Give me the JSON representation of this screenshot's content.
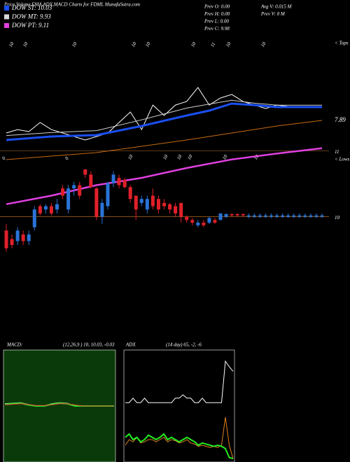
{
  "chart_data": [
    {
      "type": "candlestick",
      "title": "Price,Volume,EMA,ADX,MACD Charts for FDML MunafaSutra.com",
      "legend": [
        {
          "name": "DOW ST: 10.03",
          "color": "#1a4ff0"
        },
        {
          "name": "DOW MT: 9.93",
          "color": "#d8d8d8"
        },
        {
          "name": "DOW PT: 9.11",
          "color": "#e040e0"
        }
      ],
      "info": [
        [
          "Prev O: 0.00",
          "Prev H: 0.00",
          "Prev L: 0.00",
          "Prev C: 9.98"
        ],
        [
          "Avg V: 0.015 M",
          "Prev V: 0 M"
        ]
      ],
      "top_labels": [
        "10",
        "10",
        "10",
        "10",
        "10",
        "10",
        "11",
        "10",
        "10"
      ],
      "mid_labels": [
        "0",
        "0",
        "10",
        "10",
        "10",
        "10",
        "10",
        "10"
      ],
      "tops_label": "< Tops",
      "lows_label": "< Lows",
      "ylim": [
        9.4,
        11.9
      ],
      "yticks": [
        10,
        11
      ],
      "up_color": "#2a73d8",
      "down_color": "#e0202a",
      "candles": {
        "open": [
          9.79,
          9.66,
          9.63,
          9.73,
          9.63,
          9.84,
          10.16,
          10.11,
          10.16,
          10.11,
          10.43,
          10.11,
          10.43,
          10.48,
          10.72,
          10.64,
          10.43,
          10.0,
          10.16,
          10.51,
          10.59,
          10.56,
          10.45,
          10.32,
          10.21,
          10.11,
          10.32,
          10.27,
          10.21,
          10.19,
          10.16,
          10.21,
          10.0,
          9.95,
          9.87,
          9.91,
          9.91,
          9.95,
          9.95,
          10.0,
          10.04,
          10.04,
          10.04,
          10.0,
          10.0,
          10.0,
          10.0,
          10.0,
          10.0,
          10.0,
          10.0,
          10.0,
          10.0,
          10.0,
          10.0,
          10.0,
          10.0
        ],
        "high": [
          9.89,
          9.73,
          9.84,
          9.79,
          9.79,
          10.16,
          10.19,
          10.19,
          10.21,
          10.27,
          10.48,
          10.48,
          10.53,
          10.53,
          10.72,
          10.69,
          10.45,
          10.27,
          10.53,
          10.69,
          10.64,
          10.59,
          10.48,
          10.32,
          10.32,
          10.32,
          10.43,
          10.32,
          10.27,
          10.21,
          10.21,
          10.21,
          10.02,
          9.98,
          9.95,
          9.95,
          10.0,
          9.98,
          10.05,
          10.05,
          10.05,
          10.05,
          10.05,
          10.05,
          10.05,
          10.05,
          10.05,
          10.05,
          10.05,
          10.05,
          10.05,
          10.05,
          10.05,
          10.05,
          10.05,
          10.05,
          10.05
        ],
        "low": [
          9.47,
          9.52,
          9.57,
          9.57,
          9.57,
          9.79,
          10.02,
          10.05,
          10.02,
          10.05,
          10.27,
          10.05,
          10.32,
          10.27,
          10.59,
          10.43,
          9.95,
          9.89,
          10.11,
          10.45,
          10.43,
          10.43,
          10.21,
          9.95,
          10.16,
          10.05,
          10.11,
          10.05,
          10.11,
          10.05,
          10.0,
          9.91,
          9.91,
          9.87,
          9.84,
          9.84,
          9.89,
          9.89,
          9.95,
          9.98,
          10.0,
          10.0,
          10.0,
          9.98,
          9.98,
          9.98,
          9.98,
          9.98,
          9.98,
          9.98,
          9.98,
          9.98,
          9.98,
          9.98,
          9.98,
          9.98,
          9.98
        ],
        "close": [
          9.52,
          9.57,
          9.79,
          9.63,
          9.73,
          10.11,
          10.05,
          10.16,
          10.05,
          10.19,
          10.32,
          10.43,
          10.48,
          10.32,
          10.64,
          10.45,
          10.0,
          10.21,
          10.51,
          10.64,
          10.48,
          10.45,
          10.27,
          10.11,
          10.27,
          10.27,
          10.16,
          10.11,
          10.16,
          10.11,
          10.05,
          10.0,
          9.95,
          9.91,
          9.91,
          9.87,
          9.98,
          9.91,
          10.05,
          10.04,
          10.02,
          10.02,
          10.02,
          10.02,
          10.02,
          10.02,
          10.02,
          10.02,
          10.02,
          10.02,
          10.02,
          10.02,
          10.02,
          10.02,
          10.02,
          10.02,
          10.02
        ]
      },
      "price_lines": [
        {
          "color": "#e040e0",
          "x": [
            0,
            8,
            16,
            24,
            32,
            40,
            48,
            56
          ],
          "values": [
            10.19,
            10.32,
            10.48,
            10.59,
            10.74,
            10.87,
            10.96,
            11.04
          ]
        }
      ],
      "ema_lines": {
        "ylim": [
          0,
          100
        ],
        "value_label": "7.89",
        "series": [
          {
            "color": "#ffffff",
            "x": [
              0,
              2,
              4,
              6,
              8,
              10,
              12,
              14,
              16,
              18,
              20,
              22,
              24,
              26,
              28,
              30,
              32,
              34,
              36,
              38,
              40,
              42,
              44,
              46,
              48,
              50,
              52,
              54,
              56
            ],
            "values": [
              28.6,
              32.1,
              30,
              39.3,
              32.1,
              28.6,
              25,
              21.4,
              25,
              28.6,
              39.3,
              50,
              32.1,
              57.1,
              46.4,
              57.1,
              60.7,
              75,
              57.1,
              64.3,
              67.9,
              60.7,
              57.1,
              53.6,
              57.1,
              55.7,
              55.7,
              55.7,
              55.7
            ]
          },
          {
            "color": "#cfcfcf",
            "x": [
              0,
              8,
              16,
              24,
              32,
              36,
              40,
              44,
              48,
              56
            ],
            "values": [
              26,
              29,
              31,
              42,
              54,
              58,
              62,
              59,
              57,
              57
            ]
          },
          {
            "color": "#1a4ff0",
            "x": [
              0,
              8,
              16,
              24,
              32,
              36,
              40,
              44,
              48,
              56
            ],
            "values": [
              21.4,
              25,
              26.4,
              35.7,
              46.4,
              51.4,
              58.6,
              57.1,
              55,
              55
            ]
          },
          {
            "color": "#c86a10",
            "x": [
              0,
              16,
              32,
              48,
              56
            ],
            "values": [
              1.4,
              8.6,
              21.4,
              35.7,
              41.4
            ]
          }
        ]
      }
    },
    {
      "type": "line",
      "label": "MACD:",
      "params": "(12,26,9 ) 10, 10.03, -0.03",
      "ylim": [
        -1,
        1
      ],
      "x": [
        0,
        4,
        8,
        12,
        16,
        20,
        24,
        28,
        32,
        36,
        40,
        44,
        48,
        52,
        56
      ],
      "series": [
        {
          "color": "#ffffff",
          "values": [
            0.04,
            0.05,
            0.06,
            0.03,
            0,
            0,
            0.04,
            0.06,
            0.05,
            0,
            0,
            0,
            0,
            0,
            0
          ]
        },
        {
          "color": "#22ee22",
          "values": [
            0.03,
            0.04,
            0.05,
            0.02,
            0,
            0,
            0.03,
            0.05,
            0.04,
            0,
            0,
            0,
            0,
            0,
            0
          ]
        },
        {
          "color": "#ee3333",
          "values": [
            0.02,
            0.03,
            0.04,
            0.03,
            0.01,
            0.01,
            0.02,
            0.04,
            0.04,
            0.02,
            0,
            0,
            0,
            0,
            0
          ]
        }
      ]
    },
    {
      "type": "line",
      "label": "ADX",
      "params": "(14 day) 65, -2, -6",
      "ylim": [
        0,
        100
      ],
      "x": [
        0,
        2,
        4,
        6,
        8,
        10,
        12,
        14,
        16,
        18,
        20,
        22,
        24,
        26,
        28,
        30,
        32,
        34,
        36,
        38,
        40,
        42,
        44,
        46,
        48,
        50,
        52,
        54,
        56
      ],
      "series": [
        {
          "color": "#ffffff",
          "values": [
            53,
            53,
            57,
            53,
            53,
            57,
            53,
            53,
            53,
            53,
            53,
            53,
            53,
            57,
            57,
            60,
            57,
            57,
            53,
            53,
            57,
            53,
            53,
            53,
            53,
            53,
            90,
            85,
            81
          ]
        },
        {
          "color": "#e08020",
          "values": [
            15,
            20,
            18,
            22,
            17,
            18,
            20,
            20,
            18,
            20,
            22,
            18,
            20,
            19,
            17,
            18,
            20,
            17,
            16,
            14,
            15,
            14,
            13,
            14,
            13,
            15,
            40,
            15,
            3
          ]
        },
        {
          "color": "#22ee22",
          "values": [
            22,
            25,
            20,
            22,
            18,
            20,
            24,
            22,
            20,
            22,
            25,
            20,
            22,
            20,
            18,
            20,
            22,
            20,
            18,
            15,
            17,
            16,
            15,
            14,
            15,
            14,
            12,
            4,
            3
          ]
        }
      ]
    }
  ]
}
